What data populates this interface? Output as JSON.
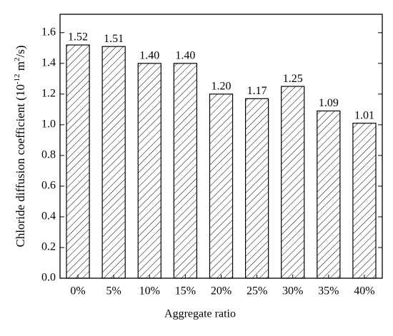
{
  "chart_data": {
    "type": "bar",
    "xlabel": "Aggregate ratio",
    "ylabel": [
      "Chloride diffusion coefficient (10",
      "-12",
      " m",
      "2",
      "/s)"
    ],
    "categories": [
      "0%",
      "5%",
      "10%",
      "15%",
      "20%",
      "25%",
      "30%",
      "35%",
      "40%"
    ],
    "values": [
      1.52,
      1.51,
      1.4,
      1.4,
      1.2,
      1.17,
      1.25,
      1.09,
      1.01
    ],
    "value_labels": [
      "1.52",
      "1.51",
      "1.40",
      "1.40",
      "1.20",
      "1.17",
      "1.25",
      "1.09",
      "1.01"
    ],
    "color": "#000000",
    "ylim": [
      0,
      1.72
    ],
    "yticks": [
      {
        "value": 0,
        "label": "0.0"
      },
      {
        "value": 0.2,
        "label": "0.2"
      },
      {
        "value": 0.4,
        "label": "0.4"
      },
      {
        "value": 0.6,
        "label": "0.6"
      },
      {
        "value": 0.8,
        "label": "0.8"
      },
      {
        "value": 1,
        "label": "1.0"
      },
      {
        "value": 1.2,
        "label": "1.2"
      },
      {
        "value": 1.4,
        "label": "1.4"
      },
      {
        "value": 1.6,
        "label": "1.6"
      }
    ],
    "grid": false
  }
}
